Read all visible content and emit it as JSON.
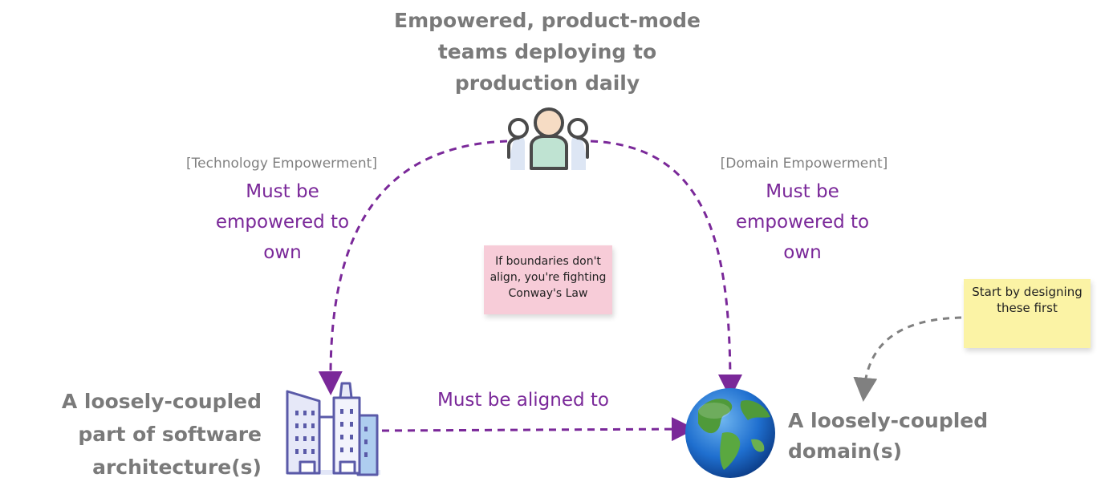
{
  "teams_label": "Empowered, product-mode teams deploying to production daily",
  "architecture_label": "A loosely-coupled part of software architecture(s)",
  "domain_label": "A loosely-coupled domain(s)",
  "left_edge": {
    "bracket": "[Technology Empowerment]",
    "label": "Must be empowered to own"
  },
  "right_edge": {
    "bracket": "[Domain Empowerment]",
    "label": "Must be empowered to own"
  },
  "bottom_edge": {
    "label": "Must be aligned to"
  },
  "sticky_notes": {
    "pink": "If boundaries don't align, you're fighting Conway's Law",
    "yellow": "Start by designing these first"
  },
  "colors": {
    "edge_purple": "#7a2899",
    "title_gray": "#7a7a7a",
    "pink_note": "#f7ccd8",
    "yellow_note": "#fbf3a5",
    "dashed_gray": "#808080"
  },
  "icons": {
    "teams": "people-group-icon",
    "architecture": "city-buildings-icon",
    "domain": "globe-icon"
  }
}
